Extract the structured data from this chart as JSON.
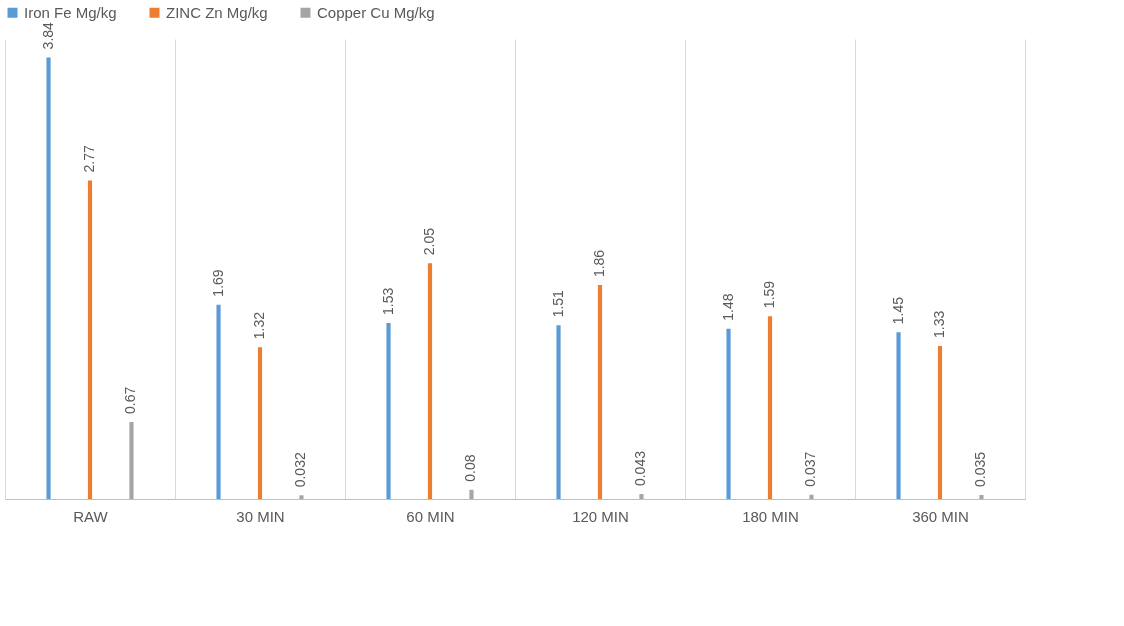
{
  "chart_data": {
    "type": "bar",
    "categories": [
      "RAW",
      "30 MIN",
      "60 MIN",
      "120 MIN",
      "180 MIN",
      "360 MIN"
    ],
    "series": [
      {
        "name": "Iron Fe Mg/kg",
        "color": "#5b9bd5",
        "values": [
          3.84,
          1.69,
          1.53,
          1.51,
          1.48,
          1.45
        ]
      },
      {
        "name": "ZINC Zn Mg/kg",
        "color": "#ed7d31",
        "values": [
          2.77,
          1.32,
          2.05,
          1.86,
          1.59,
          1.33
        ]
      },
      {
        "name": "Copper  Cu  Mg/kg",
        "color": "#a5a5a5",
        "values": [
          0.67,
          0.032,
          0.08,
          0.043,
          0.037,
          0.035
        ]
      }
    ],
    "data_labels": true,
    "legend": "top",
    "grid": "x"
  }
}
